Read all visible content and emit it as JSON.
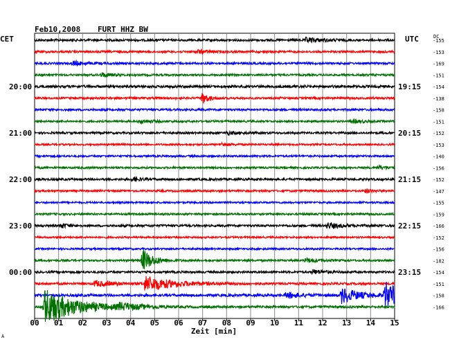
{
  "header": {
    "date": "Feb10,2008",
    "station": "FURT HHZ BW",
    "left_zone": "CET",
    "right_zone": "UTC",
    "dc_label": "DC",
    "corner_mark": "A"
  },
  "chart_data": {
    "type": "line",
    "title": "Feb10,2008   FURT HHZ BW",
    "xlabel": "Zeit [min]",
    "xlim": [
      0,
      15
    ],
    "x_ticks": [
      "00",
      "01",
      "02",
      "03",
      "04",
      "05",
      "06",
      "07",
      "08",
      "09",
      "10",
      "11",
      "12",
      "13",
      "14",
      "15"
    ],
    "grid": true,
    "trace_colors": [
      "#000000",
      "#ff0000",
      "#0000ff",
      "#007000"
    ],
    "left_time_labels": [
      {
        "row": 4,
        "text": "20:00"
      },
      {
        "row": 8,
        "text": "21:00"
      },
      {
        "row": 12,
        "text": "22:00"
      },
      {
        "row": 16,
        "text": "23:00"
      },
      {
        "row": 20,
        "text": "00:00"
      }
    ],
    "right_time_labels": [
      {
        "row": 4,
        "text": "19:15"
      },
      {
        "row": 8,
        "text": "20:15"
      },
      {
        "row": 12,
        "text": "21:15"
      },
      {
        "row": 16,
        "text": "22:15"
      },
      {
        "row": 20,
        "text": "23:15"
      }
    ],
    "dc_offsets": [
      "-155",
      "-153",
      "-169",
      "-151",
      "-154",
      "-138",
      "-158",
      "-151",
      "-152",
      "-153",
      "-140",
      "-156",
      "-152",
      "-147",
      "-155",
      "-159",
      "-166",
      "-152",
      "-156",
      "-182",
      "-154",
      "-151",
      "-158",
      "-166"
    ],
    "traces": [
      {
        "row": 0,
        "color_index": 0,
        "noise": 1.6,
        "events": [
          {
            "t": 11.3,
            "amp": 3,
            "dur": 1.2
          }
        ]
      },
      {
        "row": 1,
        "color_index": 1,
        "noise": 1.5,
        "events": [
          {
            "t": 6.8,
            "amp": 2.5,
            "dur": 0.8
          }
        ]
      },
      {
        "row": 2,
        "color_index": 2,
        "noise": 1.5,
        "events": [
          {
            "t": 1.6,
            "amp": 3,
            "dur": 0.8
          }
        ]
      },
      {
        "row": 3,
        "color_index": 3,
        "noise": 1.4,
        "events": [
          {
            "t": 2.8,
            "amp": 3,
            "dur": 0.6
          }
        ]
      },
      {
        "row": 4,
        "color_index": 0,
        "noise": 1.8,
        "events": []
      },
      {
        "row": 5,
        "color_index": 1,
        "noise": 1.5,
        "events": [
          {
            "t": 7.0,
            "amp": 9,
            "dur": 0.35
          }
        ]
      },
      {
        "row": 6,
        "color_index": 2,
        "noise": 1.5,
        "events": []
      },
      {
        "row": 7,
        "color_index": 3,
        "noise": 1.4,
        "events": [
          {
            "t": 4.4,
            "amp": 2.5,
            "dur": 0.8
          },
          {
            "t": 13.2,
            "amp": 2.5,
            "dur": 0.8
          }
        ]
      },
      {
        "row": 8,
        "color_index": 0,
        "noise": 1.5,
        "events": [
          {
            "t": 8.0,
            "amp": 2,
            "dur": 0.8
          }
        ]
      },
      {
        "row": 9,
        "color_index": 1,
        "noise": 1.3,
        "events": [
          {
            "t": 7.8,
            "amp": 2,
            "dur": 0.6
          }
        ]
      },
      {
        "row": 10,
        "color_index": 2,
        "noise": 1.4,
        "events": []
      },
      {
        "row": 11,
        "color_index": 3,
        "noise": 1.4,
        "events": [
          {
            "t": 14.3,
            "amp": 2.5,
            "dur": 0.8
          }
        ]
      },
      {
        "row": 12,
        "color_index": 0,
        "noise": 1.6,
        "events": [
          {
            "t": 4.1,
            "amp": 3,
            "dur": 0.5
          }
        ]
      },
      {
        "row": 13,
        "color_index": 1,
        "noise": 1.4,
        "events": [
          {
            "t": 13.8,
            "amp": 2.5,
            "dur": 0.5
          }
        ]
      },
      {
        "row": 14,
        "color_index": 2,
        "noise": 1.3,
        "events": []
      },
      {
        "row": 15,
        "color_index": 3,
        "noise": 1.4,
        "events": []
      },
      {
        "row": 16,
        "color_index": 0,
        "noise": 1.6,
        "events": [
          {
            "t": 1.1,
            "amp": 3,
            "dur": 0.5
          },
          {
            "t": 12.2,
            "amp": 4,
            "dur": 0.9
          }
        ]
      },
      {
        "row": 17,
        "color_index": 1,
        "noise": 1.3,
        "events": []
      },
      {
        "row": 18,
        "color_index": 2,
        "noise": 1.3,
        "events": []
      },
      {
        "row": 19,
        "color_index": 3,
        "noise": 1.4,
        "events": [
          {
            "t": 4.5,
            "amp": 16,
            "dur": 0.7
          },
          {
            "t": 11.3,
            "amp": 3,
            "dur": 0.8
          }
        ]
      },
      {
        "row": 20,
        "color_index": 0,
        "noise": 1.5,
        "events": [
          {
            "t": 11.6,
            "amp": 3,
            "dur": 0.8
          }
        ]
      },
      {
        "row": 21,
        "color_index": 1,
        "noise": 1.6,
        "events": [
          {
            "t": 4.6,
            "amp": 11,
            "dur": 1.8
          },
          {
            "t": 2.5,
            "amp": 4,
            "dur": 1.2
          }
        ]
      },
      {
        "row": 22,
        "color_index": 2,
        "noise": 1.8,
        "events": [
          {
            "t": 10.5,
            "amp": 4,
            "dur": 1.0
          },
          {
            "t": 12.8,
            "amp": 12,
            "dur": 1.0
          },
          {
            "t": 14.6,
            "amp": 19,
            "dur": 1.2
          }
        ]
      },
      {
        "row": 23,
        "color_index": 3,
        "noise": 1.6,
        "events": [
          {
            "t": 0.4,
            "amp": 26,
            "dur": 2.0
          },
          {
            "t": 3.5,
            "amp": 4,
            "dur": 1.5
          }
        ]
      }
    ]
  }
}
